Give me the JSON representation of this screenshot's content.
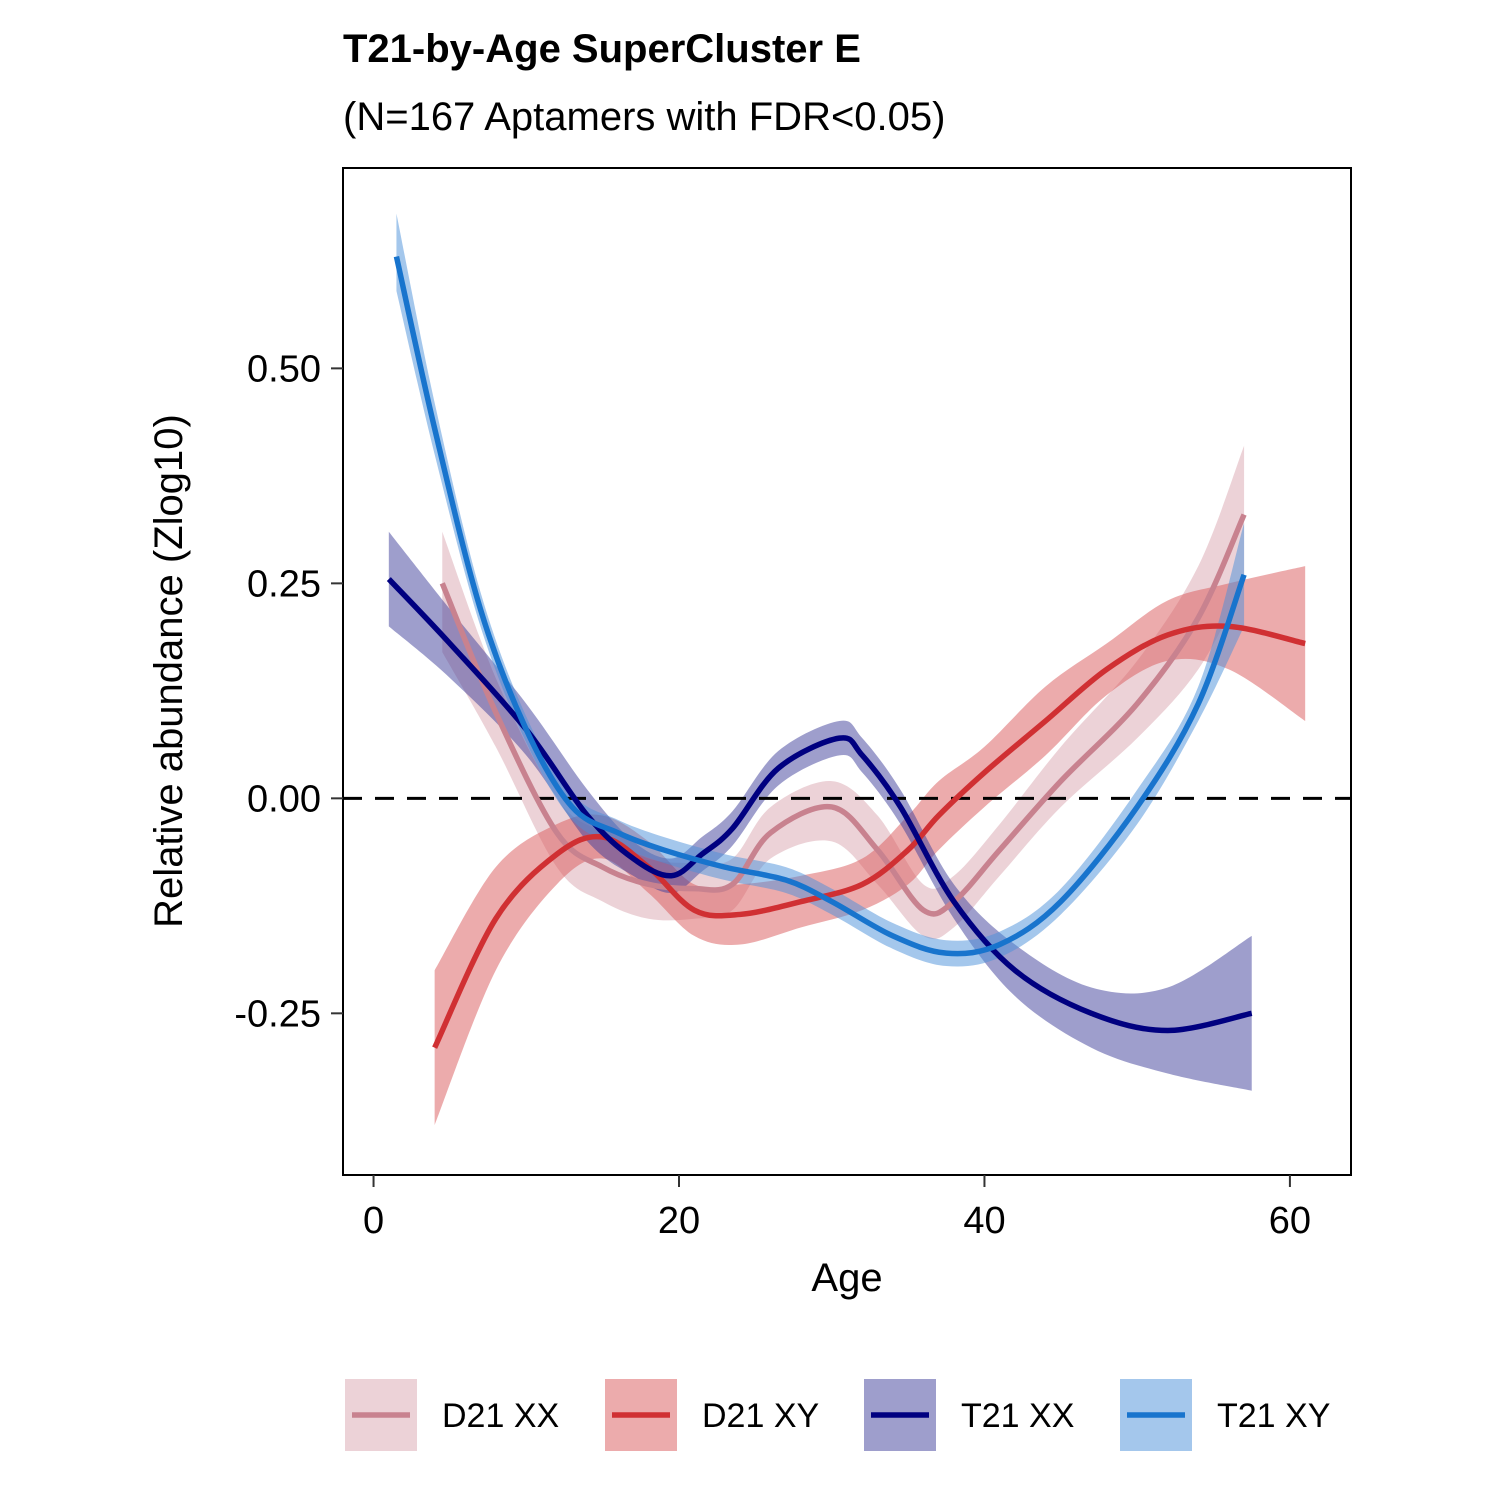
{
  "chart_data": {
    "type": "line",
    "title": "T21-by-Age SuperCluster E",
    "subtitle": "(N=167 Aptamers with FDR<0.05)",
    "xlabel": "Age",
    "ylabel": "Relative abundance (Zlog10)",
    "xlim": [
      -2,
      64
    ],
    "ylim": [
      -0.438,
      0.733
    ],
    "x_ticks": [
      0,
      20,
      40,
      60
    ],
    "x_tick_labels": [
      "0",
      "20",
      "40",
      "60"
    ],
    "y_ticks": [
      -0.25,
      0,
      0.25,
      0.5
    ],
    "y_tick_labels": [
      "-0.25",
      "0.00",
      "0.25",
      "0.50"
    ],
    "reference_line": {
      "y": 0,
      "style": "dashed"
    },
    "grid": false,
    "legend_position": "bottom",
    "series": [
      {
        "name": "D21 XX",
        "color": "#C8828F",
        "band_color": "#D9A5AF",
        "x": [
          4.5,
          8,
          12,
          15,
          18,
          21,
          23.5,
          26,
          30,
          33,
          36,
          38,
          41,
          45,
          50,
          54,
          57
        ],
        "y": [
          0.25,
          0.1,
          -0.04,
          -0.08,
          -0.1,
          -0.105,
          -0.1,
          -0.04,
          -0.01,
          -0.06,
          -0.13,
          -0.12,
          -0.06,
          0.02,
          0.11,
          0.21,
          0.33
        ],
        "lo": [
          0.17,
          0.06,
          -0.08,
          -0.12,
          -0.14,
          -0.14,
          -0.13,
          -0.07,
          -0.05,
          -0.1,
          -0.16,
          -0.15,
          -0.09,
          -0.01,
          0.07,
          0.15,
          0.25
        ],
        "hi": [
          0.31,
          0.14,
          0.0,
          -0.04,
          -0.07,
          -0.075,
          -0.07,
          -0.01,
          0.02,
          -0.02,
          -0.1,
          -0.09,
          -0.03,
          0.06,
          0.16,
          0.27,
          0.41
        ]
      },
      {
        "name": "D21 XY",
        "color": "#D03033",
        "band_color": "#D9575A",
        "x": [
          4,
          8,
          12,
          15,
          18,
          21,
          24,
          28,
          32,
          35,
          37,
          40,
          44,
          48,
          52,
          56,
          61
        ],
        "y": [
          -0.29,
          -0.14,
          -0.065,
          -0.045,
          -0.08,
          -0.13,
          -0.135,
          -0.12,
          -0.1,
          -0.06,
          -0.02,
          0.03,
          0.09,
          0.15,
          0.19,
          0.2,
          0.18
        ],
        "lo": [
          -0.38,
          -0.2,
          -0.1,
          -0.07,
          -0.11,
          -0.16,
          -0.17,
          -0.15,
          -0.13,
          -0.1,
          -0.06,
          -0.01,
          0.05,
          0.12,
          0.16,
          0.15,
          0.09
        ],
        "hi": [
          -0.2,
          -0.08,
          -0.03,
          -0.02,
          -0.05,
          -0.1,
          -0.1,
          -0.09,
          -0.07,
          -0.02,
          0.02,
          0.06,
          0.13,
          0.18,
          0.23,
          0.25,
          0.27
        ]
      },
      {
        "name": "T21 XX",
        "color": "#000080",
        "band_color": "#3D3D99",
        "x": [
          1,
          5,
          10,
          14,
          17,
          19.5,
          21.5,
          23.5,
          26.5,
          30.5,
          32,
          34.5,
          38,
          42,
          47,
          52,
          57.5
        ],
        "y": [
          0.255,
          0.18,
          0.08,
          -0.02,
          -0.07,
          -0.09,
          -0.065,
          -0.035,
          0.035,
          0.07,
          0.05,
          -0.01,
          -0.12,
          -0.2,
          -0.25,
          -0.27,
          -0.25
        ],
        "lo": [
          0.2,
          0.14,
          0.05,
          -0.05,
          -0.09,
          -0.11,
          -0.085,
          -0.055,
          0.015,
          0.05,
          0.03,
          -0.03,
          -0.14,
          -0.23,
          -0.29,
          -0.32,
          -0.34
        ],
        "hi": [
          0.31,
          0.22,
          0.11,
          0.01,
          -0.05,
          -0.07,
          -0.045,
          -0.015,
          0.055,
          0.09,
          0.07,
          0.01,
          -0.1,
          -0.17,
          -0.22,
          -0.22,
          -0.16
        ]
      },
      {
        "name": "T21 XY",
        "color": "#1874CD",
        "band_color": "#4A90D9",
        "x": [
          1.5,
          4,
          7,
          10,
          13,
          16,
          19,
          23,
          27,
          30,
          34,
          37.5,
          41,
          45,
          50,
          54,
          57
        ],
        "y": [
          0.63,
          0.43,
          0.22,
          0.08,
          -0.01,
          -0.04,
          -0.06,
          -0.08,
          -0.095,
          -0.12,
          -0.16,
          -0.18,
          -0.17,
          -0.12,
          -0.01,
          0.11,
          0.26
        ],
        "lo": [
          0.59,
          0.4,
          0.2,
          0.065,
          -0.025,
          -0.055,
          -0.075,
          -0.095,
          -0.11,
          -0.135,
          -0.175,
          -0.195,
          -0.185,
          -0.135,
          -0.03,
          0.09,
          0.2
        ],
        "hi": [
          0.68,
          0.46,
          0.24,
          0.095,
          0.005,
          -0.025,
          -0.045,
          -0.065,
          -0.08,
          -0.105,
          -0.145,
          -0.165,
          -0.155,
          -0.105,
          0.01,
          0.13,
          0.32
        ]
      }
    ]
  }
}
